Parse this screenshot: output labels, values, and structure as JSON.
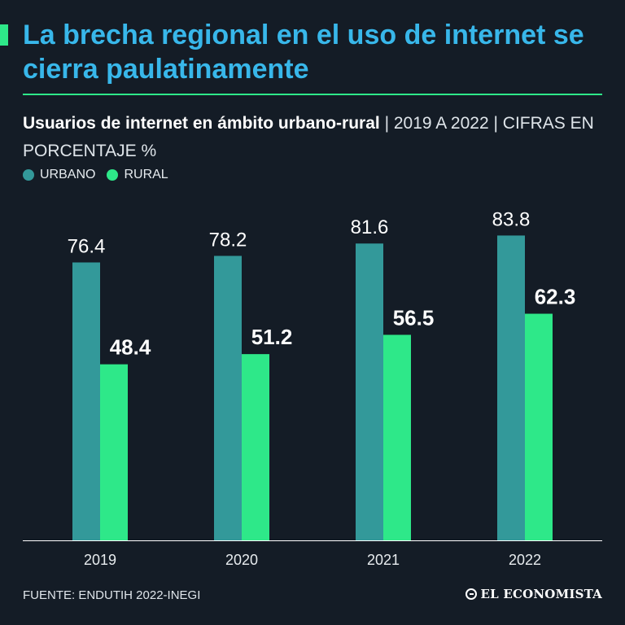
{
  "headline": "La brecha regional en el uso de internet se cierra paulatinamente",
  "subtitle": {
    "bold": "Usuarios de internet en ámbito urbano-rural",
    "light": " | 2019 A 2022 | CIFRAS EN PORCENTAJE %"
  },
  "legend": [
    {
      "label": "URBANO",
      "color": "#33999a"
    },
    {
      "label": "RURAL",
      "color": "#2ee889"
    }
  ],
  "source": "FUENTE: ENDUTIH 2022-INEGI",
  "brand": "EL ECONOMISTA",
  "colors": {
    "background": "#141c26",
    "headline": "#38b7ea",
    "accent": "#2ee889",
    "urbano": "#33999a",
    "rural": "#2ee889"
  },
  "chart_data": {
    "type": "bar",
    "title": "Usuarios de internet en ámbito urbano-rural",
    "categories": [
      "2019",
      "2020",
      "2021",
      "2022"
    ],
    "series": [
      {
        "name": "URBANO",
        "values": [
          76.4,
          78.2,
          81.6,
          83.8
        ],
        "label_style": "regular"
      },
      {
        "name": "RURAL",
        "values": [
          48.4,
          51.2,
          56.5,
          62.3
        ],
        "label_style": "bold"
      }
    ],
    "xlabel": "",
    "ylabel": "",
    "ylim": [
      0,
      100
    ],
    "grid": false,
    "legend_position": "top-left"
  }
}
